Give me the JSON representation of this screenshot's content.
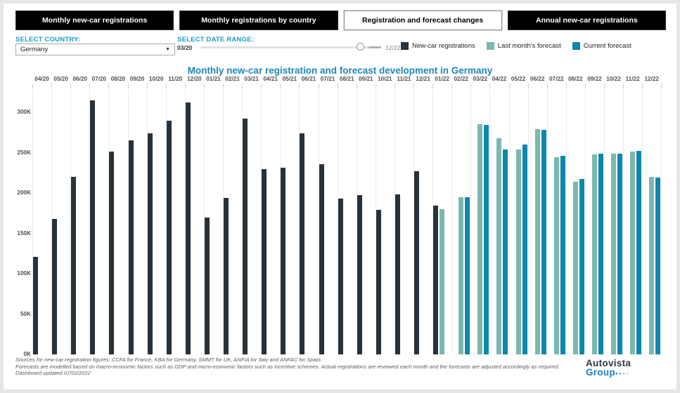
{
  "tabs": [
    {
      "label": "Monthly new-car registrations",
      "active": false
    },
    {
      "label": "Monthly registrations by country",
      "active": false
    },
    {
      "label": "Registration and forecast changes",
      "active": true
    },
    {
      "label": "Annual new-car registrations",
      "active": false
    }
  ],
  "controls": {
    "country_label": "SELECT COUNTRY:",
    "country_value": "Germany",
    "date_range_label": "SELECT DATE RANGE:",
    "date_range_start": "03/20",
    "date_range_end": "12/22"
  },
  "legend": [
    {
      "label": "New-car registrations",
      "color": "#27323a"
    },
    {
      "label": "Last month's forecast",
      "color": "#7cb7b0"
    },
    {
      "label": "Current forecast",
      "color": "#0c87ad"
    }
  ],
  "chart_data": {
    "type": "bar",
    "title": "Monthly new-car registration and forecast development in Germany",
    "title_color": "#1f86b8",
    "unit": "thousands of registrations",
    "ylim": [
      0,
      330
    ],
    "yticks": [
      0,
      50,
      100,
      150,
      200,
      250,
      300
    ],
    "ytick_suffix": "K",
    "grid": "vertical",
    "legend_position": "top-right",
    "series": [
      {
        "name": "New-car registrations",
        "key": "actual",
        "color": "#27323a"
      },
      {
        "name": "Last month's forecast",
        "key": "last",
        "color": "#7cb7b0"
      },
      {
        "name": "Current forecast",
        "key": "current",
        "color": "#0c87ad"
      }
    ],
    "months": [
      {
        "label": "04/20",
        "actual": 121
      },
      {
        "label": "05/20",
        "actual": 168
      },
      {
        "label": "06/20",
        "actual": 220
      },
      {
        "label": "07/20",
        "actual": 315
      },
      {
        "label": "08/20",
        "actual": 251
      },
      {
        "label": "09/20",
        "actual": 265
      },
      {
        "label": "10/20",
        "actual": 274
      },
      {
        "label": "11/20",
        "actual": 290
      },
      {
        "label": "12/20",
        "actual": 312
      },
      {
        "label": "01/21",
        "actual": 170
      },
      {
        "label": "02/21",
        "actual": 194
      },
      {
        "label": "03/21",
        "actual": 292
      },
      {
        "label": "04/21",
        "actual": 230
      },
      {
        "label": "05/21",
        "actual": 231
      },
      {
        "label": "06/21",
        "actual": 274
      },
      {
        "label": "07/21",
        "actual": 236
      },
      {
        "label": "08/21",
        "actual": 193
      },
      {
        "label": "09/21",
        "actual": 197
      },
      {
        "label": "10/21",
        "actual": 179
      },
      {
        "label": "11/21",
        "actual": 198
      },
      {
        "label": "12/21",
        "actual": 227
      },
      {
        "label": "01/22",
        "actual": 184,
        "last": 180
      },
      {
        "label": "02/22",
        "last": 195,
        "current": 195
      },
      {
        "label": "03/22",
        "last": 285,
        "current": 284
      },
      {
        "label": "04/22",
        "last": 268,
        "current": 254
      },
      {
        "label": "05/22",
        "last": 254,
        "current": 260
      },
      {
        "label": "06/22",
        "last": 279,
        "current": 278
      },
      {
        "label": "07/22",
        "last": 244,
        "current": 246
      },
      {
        "label": "08/22",
        "last": 214,
        "current": 217
      },
      {
        "label": "09/22",
        "last": 248,
        "current": 249
      },
      {
        "label": "10/22",
        "last": 249,
        "current": 249
      },
      {
        "label": "11/22",
        "last": 251,
        "current": 252
      },
      {
        "label": "12/22",
        "last": 220,
        "current": 219
      }
    ]
  },
  "footer": {
    "line1": "Sources for new-car registration figures: CCFA for France, KBA for Germany, SMMT for UK, ANFIA for Italy and ANFAC for Spain.",
    "line2": "Forecasts are modelled based on macro-economic factors such as GDP and micro-economic factors such as incentive schemes. Actual registrations are reviewed each month and the forecasts are adjusted accordingly as required.",
    "line3": "Dashboard updated 07/02/2022"
  },
  "logo": {
    "line1": "Autovista",
    "line2": "Group"
  }
}
